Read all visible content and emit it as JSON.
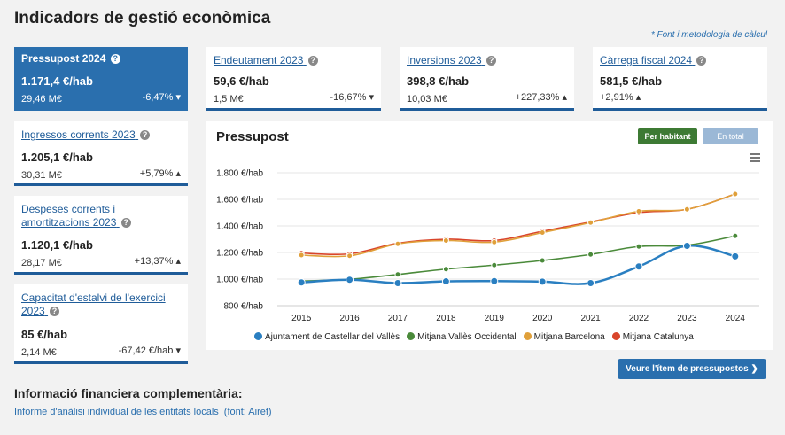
{
  "page": {
    "title": "Indicadors de gestió econòmica",
    "font_link": "* Font i metodologia de càlcul"
  },
  "indicators": {
    "pressupost": {
      "title": "Pressupost 2024",
      "value": "1.171,4 €/hab",
      "total": "29,46 M€",
      "change": "-6,47%",
      "direction": "down"
    },
    "endeutament": {
      "title": "Endeutament 2023",
      "value": "59,6 €/hab",
      "total": "1,5 M€",
      "change": "-16,67%",
      "direction": "down"
    },
    "inversions": {
      "title": "Inversions 2023",
      "value": "398,8 €/hab",
      "total": "10,03 M€",
      "change": "+227,33%",
      "direction": "up"
    },
    "carrega": {
      "title": "Càrrega fiscal 2024",
      "value": "581,5 €/hab",
      "total": "",
      "change": "+2,91%",
      "direction": "up"
    },
    "ingressos": {
      "title": "Ingressos corrents 2023",
      "value": "1.205,1 €/hab",
      "total": "30,31 M€",
      "change": "+5,79%",
      "direction": "up"
    },
    "despeses": {
      "title": "Despeses corrents i amortitzacions 2023",
      "value": "1.120,1 €/hab",
      "total": "28,17 M€",
      "change": "+13,37%",
      "direction": "up"
    },
    "capacitat": {
      "title": "Capacitat d'estalvi de l'exercici 2023",
      "value": "85 €/hab",
      "total": "2,14 M€",
      "change": "-67,42 €/hab",
      "direction": "down"
    }
  },
  "chart_panel": {
    "title": "Pressupost",
    "btn_per_habitant": "Per habitant",
    "btn_en_total": "En total",
    "menu_icon": "hamburger-icon"
  },
  "chart_data": {
    "type": "line",
    "x": [
      "2015",
      "2016",
      "2017",
      "2018",
      "2019",
      "2020",
      "2021",
      "2022",
      "2023",
      "2024"
    ],
    "ylim": [
      800,
      1800
    ],
    "yticks": [
      800,
      1000,
      1200,
      1400,
      1600,
      1800
    ],
    "ytick_labels": [
      "800 €/hab",
      "1.000 €/hab",
      "1.200 €/hab",
      "1.400 €/hab",
      "1.600 €/hab",
      "1.800 €/hab"
    ],
    "grid": true,
    "legend_position": "bottom",
    "series": [
      {
        "name": "Ajuntament de Castellar del Vallès",
        "color": "#2a7fc1",
        "values": [
          975,
          995,
          970,
          983,
          985,
          981,
          970,
          1095,
          1250,
          1171
        ]
      },
      {
        "name": "Mitjana Vallès Occidental",
        "color": "#4a8a3a",
        "values": [
          985,
          998,
          1035,
          1075,
          1105,
          1140,
          1185,
          1245,
          1255,
          1325
        ]
      },
      {
        "name": "Mitjana Barcelona",
        "color": "#e0a03a",
        "values": [
          1180,
          1175,
          1265,
          1290,
          1278,
          1350,
          1425,
          1510,
          1525,
          1640
        ]
      },
      {
        "name": "Mitjana Catalunya",
        "color": "#d9452b",
        "values": [
          1195,
          1190,
          1270,
          1300,
          1290,
          1360,
          1430,
          1500,
          1525,
          1640
        ]
      }
    ]
  },
  "cta": {
    "label": "Veure l'ítem de pressupostos ❯"
  },
  "info": {
    "title": "Informació financiera complementària:",
    "link": "Informe d'anàlisi individual de les entitats locals",
    "source": "(font: Airef)"
  }
}
